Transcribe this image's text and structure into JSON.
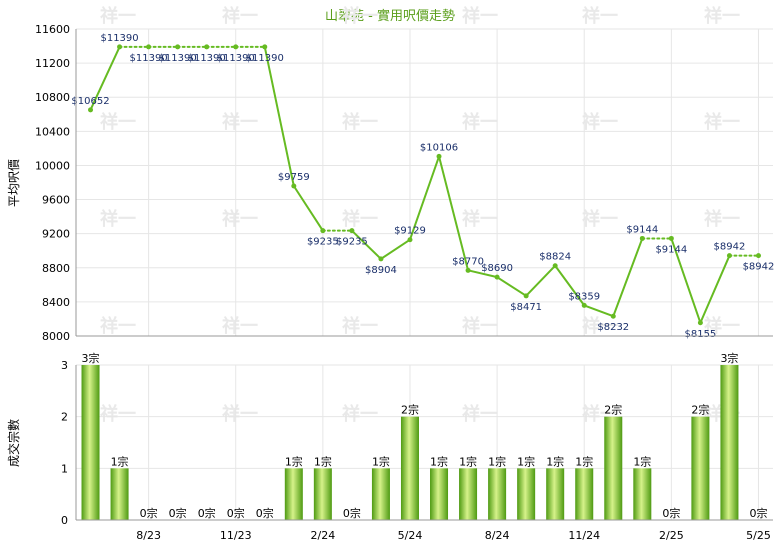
{
  "chart_data": {
    "title": "山翠苑 - 實用呎價走勢",
    "colors": {
      "line": "#66bb22",
      "title": "#5a9e1a",
      "bar_light": "#d6f28a",
      "bar_dark": "#4e9a12",
      "grid": "#e6e6e6",
      "label": "#1a2f6a"
    },
    "price_chart": {
      "type": "line",
      "ylabel": "平均呎價",
      "ylim": [
        8000,
        11600
      ],
      "yticks": [
        8000,
        8400,
        8800,
        9200,
        9600,
        10000,
        10400,
        10800,
        11200,
        11600
      ],
      "grid": true,
      "values": [
        10652,
        11390,
        11390,
        11390,
        11390,
        11390,
        11390,
        9759,
        9235,
        9235,
        8904,
        9129,
        10106,
        8770,
        8690,
        8471,
        8824,
        8359,
        8232,
        9144,
        9144,
        8155,
        8942,
        8942
      ],
      "labels": [
        "$10652",
        "$11390",
        "$11390",
        "$11390",
        "$11390",
        "$11390",
        "$11390",
        "$9759",
        "$9235",
        "$9235",
        "$8904",
        "$9129",
        "$10106",
        "$8770",
        "$8690",
        "$8471",
        "$8824",
        "$8359",
        "$8232",
        "$9144",
        "$9144",
        "$8155",
        "$8942",
        "$8942"
      ],
      "carried_forward": [
        false,
        false,
        true,
        true,
        true,
        true,
        true,
        false,
        false,
        true,
        false,
        false,
        false,
        false,
        false,
        false,
        false,
        false,
        false,
        false,
        true,
        false,
        false,
        true
      ]
    },
    "volume_chart": {
      "type": "bar",
      "ylabel": "成交宗數",
      "ylim": [
        0,
        3
      ],
      "yticks": [
        0,
        1,
        2,
        3
      ],
      "values": [
        3,
        1,
        0,
        0,
        0,
        0,
        0,
        1,
        1,
        0,
        1,
        2,
        1,
        1,
        1,
        1,
        1,
        1,
        2,
        1,
        0,
        2,
        3,
        0
      ],
      "labels": [
        "3宗",
        "1宗",
        "0宗",
        "0宗",
        "0宗",
        "0宗",
        "0宗",
        "1宗",
        "1宗",
        "0宗",
        "1宗",
        "2宗",
        "1宗",
        "1宗",
        "1宗",
        "1宗",
        "1宗",
        "1宗",
        "2宗",
        "1宗",
        "0宗",
        "2宗",
        "3宗",
        "0宗"
      ]
    },
    "x_tick_labels": [
      {
        "index": 2,
        "text": "8/23"
      },
      {
        "index": 5,
        "text": "11/23"
      },
      {
        "index": 8,
        "text": "2/24"
      },
      {
        "index": 11,
        "text": "5/24"
      },
      {
        "index": 14,
        "text": "8/24"
      },
      {
        "index": 17,
        "text": "11/24"
      },
      {
        "index": 20,
        "text": "2/25"
      },
      {
        "index": 23,
        "text": "5/25"
      }
    ],
    "watermark": "祥一"
  }
}
